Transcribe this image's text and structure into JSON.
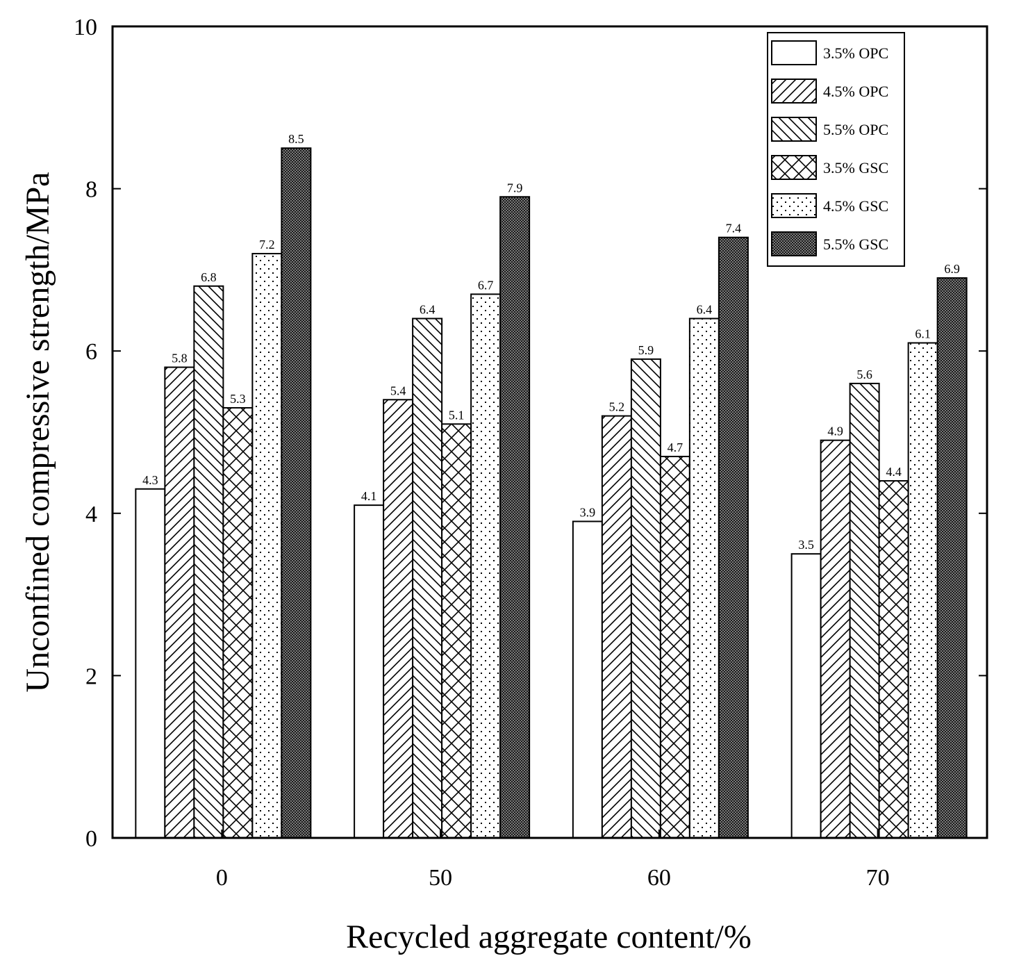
{
  "chart_data": {
    "type": "bar",
    "xlabel": "Recycled aggregate content/%",
    "ylabel": "Unconfined compressive strength/MPa",
    "ylim": [
      0,
      10
    ],
    "yticks": [
      "0",
      "2",
      "4",
      "6",
      "8",
      "10"
    ],
    "categories": [
      "0",
      "50",
      "60",
      "70"
    ],
    "legend_position": "top-right",
    "series": [
      {
        "name": "3.5% OPC",
        "pattern": "none",
        "values": [
          4.3,
          4.1,
          3.9,
          3.5
        ],
        "labels": [
          "4.3",
          "4.1",
          "3.9",
          "3.5"
        ]
      },
      {
        "name": "4.5% OPC",
        "pattern": "forward-hatch",
        "values": [
          5.8,
          5.4,
          5.2,
          4.9
        ],
        "labels": [
          "5.8",
          "5.4",
          "5.2",
          "4.9"
        ]
      },
      {
        "name": "5.5% OPC",
        "pattern": "back-hatch",
        "values": [
          6.8,
          6.4,
          5.9,
          5.6
        ],
        "labels": [
          "6.8",
          "6.4",
          "5.9",
          "5.6"
        ]
      },
      {
        "name": "3.5% GSC",
        "pattern": "cross-hatch",
        "values": [
          5.3,
          5.1,
          4.7,
          4.4
        ],
        "labels": [
          "5.3",
          "5.1",
          "4.7",
          "4.4"
        ]
      },
      {
        "name": "4.5% GSC",
        "pattern": "sparse-dots",
        "values": [
          7.2,
          6.7,
          6.4,
          6.1
        ],
        "labels": [
          "7.2",
          "6.7",
          "6.4",
          "6.1"
        ]
      },
      {
        "name": "5.5% GSC",
        "pattern": "dense-dots",
        "values": [
          8.5,
          7.9,
          7.4,
          6.9
        ],
        "labels": [
          "8.5",
          "7.9",
          "7.4",
          "6.9"
        ]
      }
    ]
  }
}
